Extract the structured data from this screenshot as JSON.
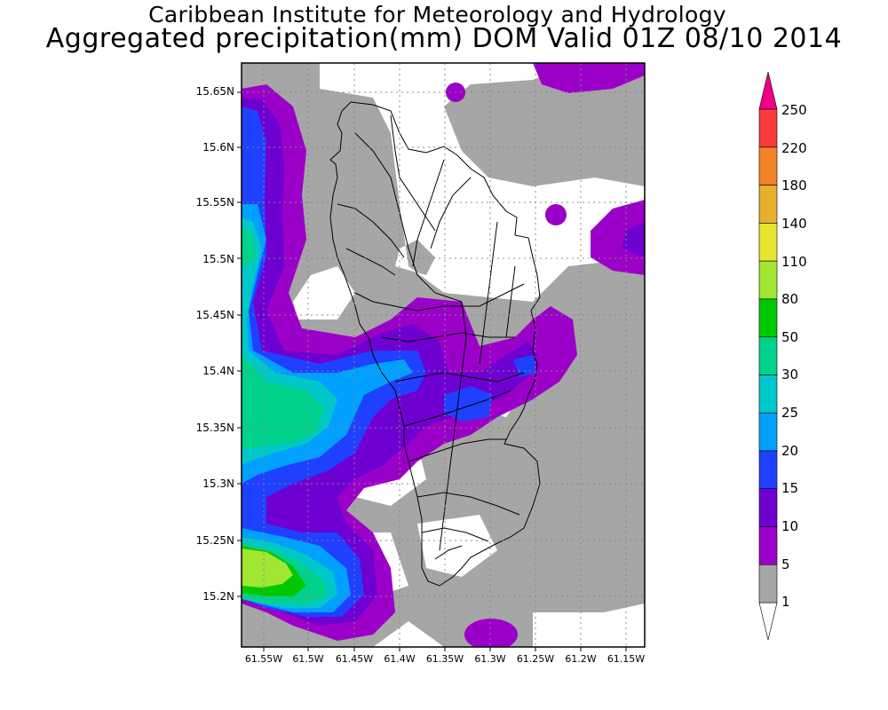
{
  "header": {
    "title": "Caribbean Institute for Meteorology and Hydrology",
    "subtitle": "Aggregated precipitation(mm) DOM Valid 01Z 08/10 2014"
  },
  "map": {
    "lat_labels": [
      "15.65N",
      "15.6N",
      "15.55N",
      "15.5N",
      "15.45N",
      "15.4N",
      "15.35N",
      "15.3N",
      "15.25N",
      "15.2N"
    ],
    "lon_labels": [
      "61.55W",
      "61.5W",
      "61.45W",
      "61.4W",
      "61.35W",
      "61.3W",
      "61.25W",
      "61.2W",
      "61.15W"
    ]
  },
  "colorbar": {
    "levels": [
      "1",
      "5",
      "10",
      "15",
      "20",
      "25",
      "30",
      "50",
      "80",
      "110",
      "140",
      "180",
      "220",
      "250"
    ],
    "colors": [
      "#ffffff",
      "#a6a6a6",
      "#9b00c8",
      "#6e00d2",
      "#2040ff",
      "#00a0ff",
      "#00c8c8",
      "#00d28c",
      "#00c800",
      "#a0e632",
      "#e6e632",
      "#e6af2d",
      "#f08228",
      "#fa3c3c",
      "#f00082"
    ]
  },
  "colors": {
    "gray": "#a6a6a6",
    "purple": "#9b00c8",
    "violet": "#6e00d2",
    "blue": "#2040ff",
    "sky": "#00a0ff",
    "cyan": "#00c8c8",
    "seagreen": "#00d28c",
    "green": "#00c800",
    "lime": "#a0e632"
  }
}
